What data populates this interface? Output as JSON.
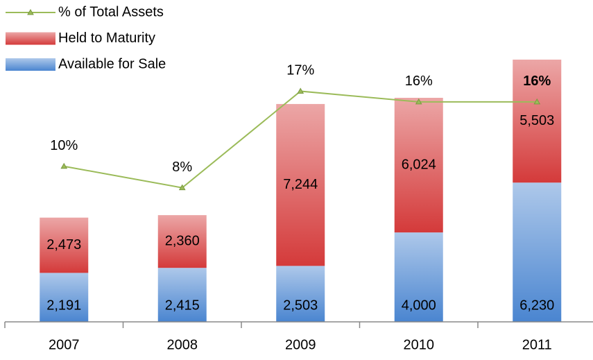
{
  "chart_data": {
    "type": "bar",
    "stacked": true,
    "categories": [
      "2007",
      "2008",
      "2009",
      "2010",
      "2011"
    ],
    "series": [
      {
        "name": "Available for Sale",
        "color": "#4a85d0",
        "values": [
          2191,
          2415,
          2503,
          4000,
          6230
        ],
        "value_labels": [
          "2,191",
          "2,415",
          "2,503",
          "4,000",
          "6,230"
        ]
      },
      {
        "name": "Held to Maturity",
        "color": "#d43a3a",
        "values": [
          2473,
          2360,
          7244,
          6024,
          5503
        ],
        "value_labels": [
          "2,473",
          "2,360",
          "7,244",
          "6,024",
          "5,503"
        ]
      },
      {
        "name": "% of Total Assets",
        "type": "line",
        "axis": "y2",
        "color": "#9bbb59",
        "values": [
          10,
          8,
          17,
          16,
          16
        ],
        "value_labels": [
          "10%",
          "8%",
          "17%",
          "16%",
          "16%"
        ]
      }
    ],
    "ylim": [
      0,
      14400
    ],
    "y2lim": [
      -4.5,
      25.5
    ],
    "legend": "top-left"
  }
}
